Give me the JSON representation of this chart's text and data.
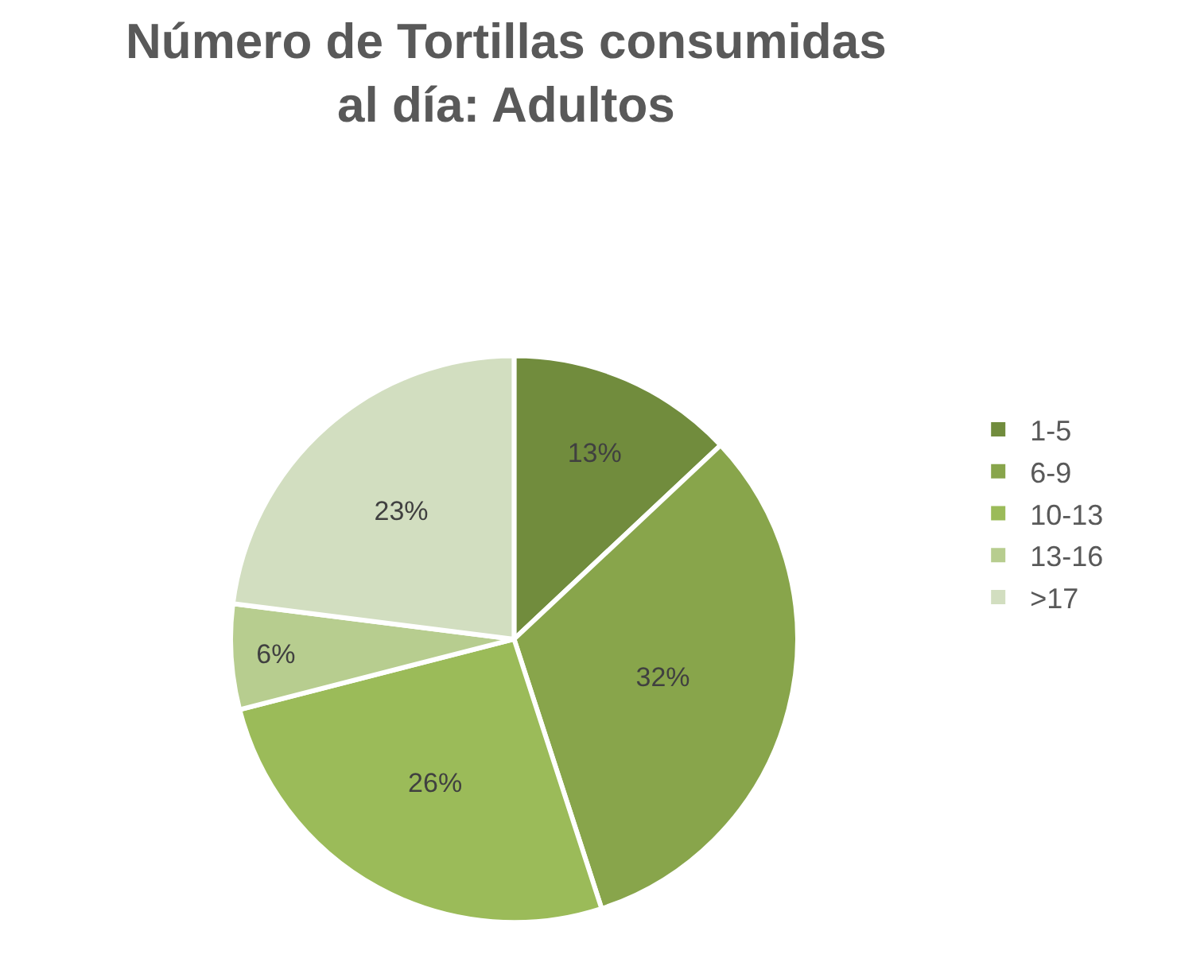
{
  "chart_data": {
    "type": "pie",
    "title": "Número de Tortillas consumidas\nal día: Adultos",
    "categories": [
      "1-5",
      "6-9",
      "10-13",
      "13-16",
      ">17"
    ],
    "values": [
      13,
      32,
      26,
      6,
      23
    ],
    "value_labels": [
      "13%",
      "32%",
      "26%",
      "6%",
      "23%"
    ],
    "colors": [
      "#718c3d",
      "#88a54b",
      "#9bbb59",
      "#b7cd8f",
      "#d2dec0"
    ],
    "legend": "right"
  }
}
